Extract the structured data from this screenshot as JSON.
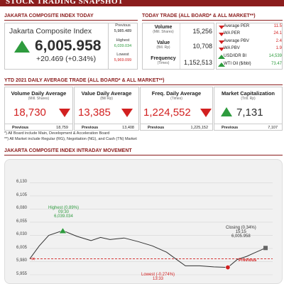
{
  "header": {
    "title": "STOCK TRADING SNAPSHOT"
  },
  "composite": {
    "section_title": "JAKARTA COMPOSITE INDEX TODAY",
    "name": "Jakarta Composite Index",
    "value": "6,005.958",
    "change": "+20.469 (+0.34%)",
    "previous_label": "Previous",
    "previous_value": "5,985.489",
    "highest_label": "Highest",
    "highest_value": "6,039.034",
    "lowest_label": "Lowest",
    "lowest_value": "5,969.099",
    "up_color": "#2e9b3e"
  },
  "today_trade": {
    "section_title": "TODAY TRADE (ALL BOARD* & ALL MARKET**)",
    "rows": [
      {
        "label": "Volume",
        "unit": "(Mill. Shares)",
        "value": "15,256"
      },
      {
        "label": "Value",
        "unit": "(Bill. Rp)",
        "value": "10,708"
      },
      {
        "label": "Frequency",
        "unit": "(Times)",
        "value": "1,152,513"
      }
    ]
  },
  "indicators": [
    {
      "label": "Average PER",
      "value": "11.5",
      "dir": "down"
    },
    {
      "label": "WA PER",
      "value": "24.1",
      "dir": "down"
    },
    {
      "label": "Average PBV",
      "value": "2.4",
      "dir": "down"
    },
    {
      "label": "WA PBV",
      "value": "1.9",
      "dir": "down"
    },
    {
      "label": "USD/IDR BI",
      "value": "14,539",
      "dir": "up"
    },
    {
      "label": "WTI Oil ($/bbl)",
      "value": "73.47",
      "dir": "up"
    }
  ],
  "ytd": {
    "section_title": "YTD 2021 DAILY AVERAGE TRADE (ALL BOARD* & ALL MARKET**)",
    "previous_label": "Previous",
    "cards": [
      {
        "title": "Volume Daily Average",
        "unit": "(Mill. Shares)",
        "value": "18,730",
        "previous": "18,759",
        "dir": "down"
      },
      {
        "title": "Value Daily Average",
        "unit": "(Bill Rp)",
        "value": "13,385",
        "previous": "13,408",
        "dir": "down"
      },
      {
        "title": "Freq. Daily Average",
        "unit": "(Times)",
        "value": "1,224,552",
        "previous": "1,225,152",
        "dir": "down"
      },
      {
        "title": "Market Capitalization",
        "unit": "(Trill. Rp)",
        "value": "7,131",
        "previous": "7,107",
        "dir": "up"
      }
    ],
    "notes": [
      "*) All Board include Main, Development & Acceleration Board",
      "**) All Market include Regular (RG), Negotiation (NG), and Cash (TN) Market"
    ]
  },
  "intraday": {
    "section_title": "JAKARTA COMPOSITE INDEX INTRADAY MOVEMENT",
    "annotations": {
      "highest": [
        "Highest (0.89%)",
        "09:30",
        "6,039.034"
      ],
      "lowest": [
        "Lowest (-0.274%)",
        "13:33"
      ],
      "closing": [
        "Closing (0.34%)",
        "15:15",
        "6,005.958"
      ],
      "previous": "Previous"
    }
  },
  "chart_data": {
    "type": "line",
    "title": "JAKARTA COMPOSITE INDEX INTRADAY MOVEMENT",
    "xlabel": "",
    "ylabel": "",
    "ylim": [
      5955,
      6140
    ],
    "y_ticks": [
      "6,130",
      "6,105",
      "6,080",
      "6,055",
      "6,030",
      "6,005",
      "5,980",
      "5,955"
    ],
    "y_tick_values": [
      6130,
      6105,
      6080,
      6055,
      6030,
      6005,
      5980,
      5955
    ],
    "grid": true,
    "reference_line": {
      "name": "Previous",
      "value": 5985.489
    },
    "series": [
      {
        "x": [
          0,
          4,
          8,
          14,
          20,
          26,
          30,
          34,
          40,
          46,
          52,
          58,
          62,
          66,
          72,
          78,
          84,
          88,
          92,
          95,
          100
        ],
        "y": [
          5985.5,
          6010,
          6030,
          6039.0,
          6028,
          6020,
          6026,
          6022,
          6025,
          6018,
          6010,
          5998,
          5985,
          5972,
          5972,
          5970,
          5969.1,
          5984,
          5990,
          5996,
          6005.958
        ]
      }
    ]
  }
}
